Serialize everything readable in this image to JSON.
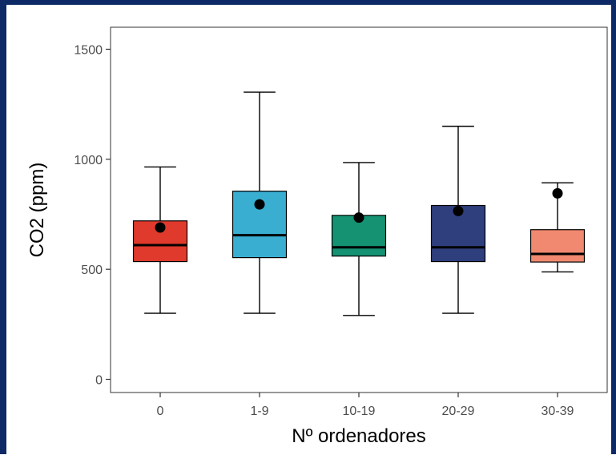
{
  "chart_data": {
    "type": "box",
    "xlabel": "Nº ordenadores",
    "ylabel": "CO2 (ppm)",
    "ylim": [
      -60,
      1600
    ],
    "yticks": [
      0,
      500,
      1000,
      1500
    ],
    "categories": [
      "0",
      "1-9",
      "10-19",
      "20-29",
      "30-39"
    ],
    "boxes": [
      {
        "category": "0",
        "min": 300,
        "q1": 535,
        "median": 610,
        "q3": 720,
        "max": 965,
        "mean": 690,
        "color": "#e03a2c"
      },
      {
        "category": "1-9",
        "min": 300,
        "q1": 553,
        "median": 655,
        "q3": 855,
        "max": 1305,
        "mean": 795,
        "color": "#3aaed0"
      },
      {
        "category": "10-19",
        "min": 290,
        "q1": 560,
        "median": 600,
        "q3": 745,
        "max": 985,
        "mean": 735,
        "color": "#149272"
      },
      {
        "category": "20-29",
        "min": 300,
        "q1": 535,
        "median": 600,
        "q3": 790,
        "max": 1150,
        "mean": 765,
        "color": "#2f3f7d"
      },
      {
        "category": "30-39",
        "min": 488,
        "q1": 533,
        "median": 570,
        "q3": 680,
        "max": 893,
        "mean": 845,
        "color": "#f0896f"
      }
    ],
    "grid": false,
    "legend": "none"
  }
}
